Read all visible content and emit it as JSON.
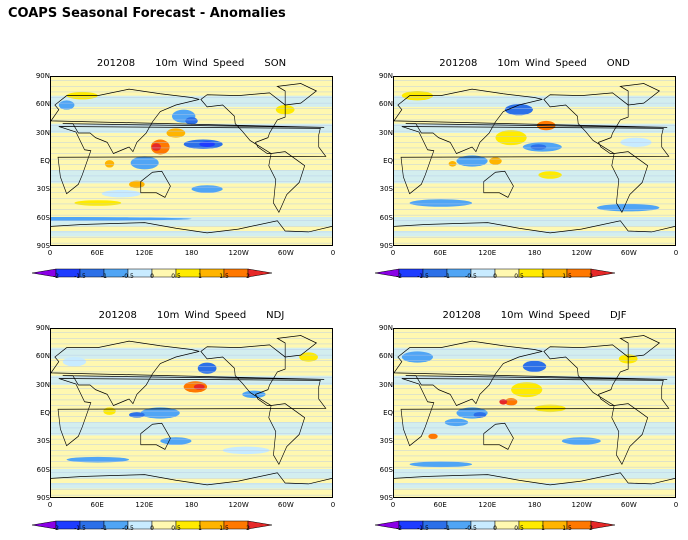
{
  "page_title": "COAPS Seasonal Forecast - Anomalies",
  "panels": [
    {
      "date": "201208",
      "variable": "10m Wind Speed",
      "season": "SON"
    },
    {
      "date": "201208",
      "variable": "10m Wind Speed",
      "season": "OND"
    },
    {
      "date": "201208",
      "variable": "10m Wind Speed",
      "season": "NDJ"
    },
    {
      "date": "201208",
      "variable": "10m Wind Speed",
      "season": "DJF"
    }
  ],
  "lat_labels": [
    "90N",
    "60N",
    "30N",
    "EQ",
    "30S",
    "60S",
    "90S"
  ],
  "lon_labels": [
    "0",
    "60E",
    "120E",
    "180",
    "120W",
    "60W",
    "0"
  ],
  "colorbar": {
    "labels": [
      "-2",
      "-1.5",
      "-1",
      "-0.5",
      "0",
      "0.5",
      "1",
      "1.5",
      "2"
    ],
    "colors": [
      "#8a00e6",
      "#1e3cff",
      "#2c70e8",
      "#50a5f5",
      "#c8ebff",
      "#fff8b0",
      "#ffeb00",
      "#ffb400",
      "#ff7800",
      "#e62828"
    ]
  }
}
